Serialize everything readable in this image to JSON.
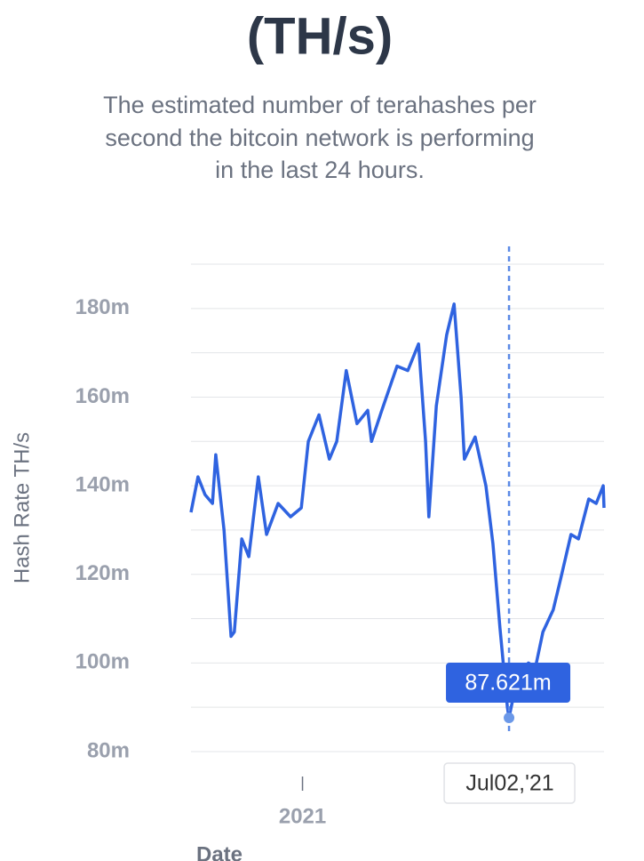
{
  "chart_data": {
    "type": "line",
    "title": "(TH/s)",
    "subtitle": [
      "The estimated number of terahashes per",
      "second the bitcoin network is performing",
      "in the last 24 hours."
    ],
    "y_label": "Hash Rate TH/s",
    "x_label": "Date",
    "x": [
      2020.73,
      2020.747,
      2020.764,
      2020.782,
      2020.79,
      2020.81,
      2020.827,
      2020.835,
      2020.853,
      2020.87,
      2020.893,
      2020.913,
      2020.941,
      2020.971,
      2020.997,
      2021.014,
      2021.04,
      2021.065,
      2021.083,
      2021.106,
      2021.132,
      2021.158,
      2021.167,
      2021.192,
      2021.229,
      2021.255,
      2021.281,
      2021.298,
      2021.306,
      2021.324,
      2021.349,
      2021.367,
      2021.384,
      2021.392,
      2021.418,
      2021.444,
      2021.461,
      2021.478,
      2021.496,
      2021.5,
      2021.521,
      2021.547,
      2021.564,
      2021.582,
      2021.607,
      2021.625,
      2021.65,
      2021.668,
      2021.693,
      2021.711,
      2021.728,
      2021.73
    ],
    "series": [
      {
        "name": "Hash Rate TH/s",
        "color": "#2f63e0",
        "values": [
          134,
          142,
          138,
          136,
          147,
          130,
          106,
          107,
          128,
          124,
          142,
          129,
          136,
          133,
          135,
          150,
          156,
          146,
          150,
          166,
          154,
          157,
          150,
          157,
          167,
          166,
          172,
          150,
          133,
          158,
          174,
          181,
          160,
          146,
          151,
          140,
          127,
          108,
          90,
          87.621,
          97,
          100,
          99,
          107,
          112,
          119,
          129,
          128,
          137,
          136,
          140,
          135
        ]
      }
    ],
    "xlim": [
      2020.73,
      2021.73
    ],
    "xticks": [
      2021
    ],
    "ylim": [
      80,
      190
    ],
    "yticks": [
      {
        "value": 80,
        "label": "80m"
      },
      {
        "value": 100,
        "label": "100m"
      },
      {
        "value": 120,
        "label": "120m"
      },
      {
        "value": 140,
        "label": "140m"
      },
      {
        "value": 160,
        "label": "160m"
      },
      {
        "value": 180,
        "label": "180m"
      }
    ],
    "y_grid": [
      80,
      90,
      100,
      110,
      120,
      130,
      140,
      150,
      160,
      170,
      180,
      190
    ],
    "highlight": {
      "x": 2021.5,
      "x_label": "Jul02,'21",
      "value": 87.621,
      "label": "87.621m"
    }
  }
}
